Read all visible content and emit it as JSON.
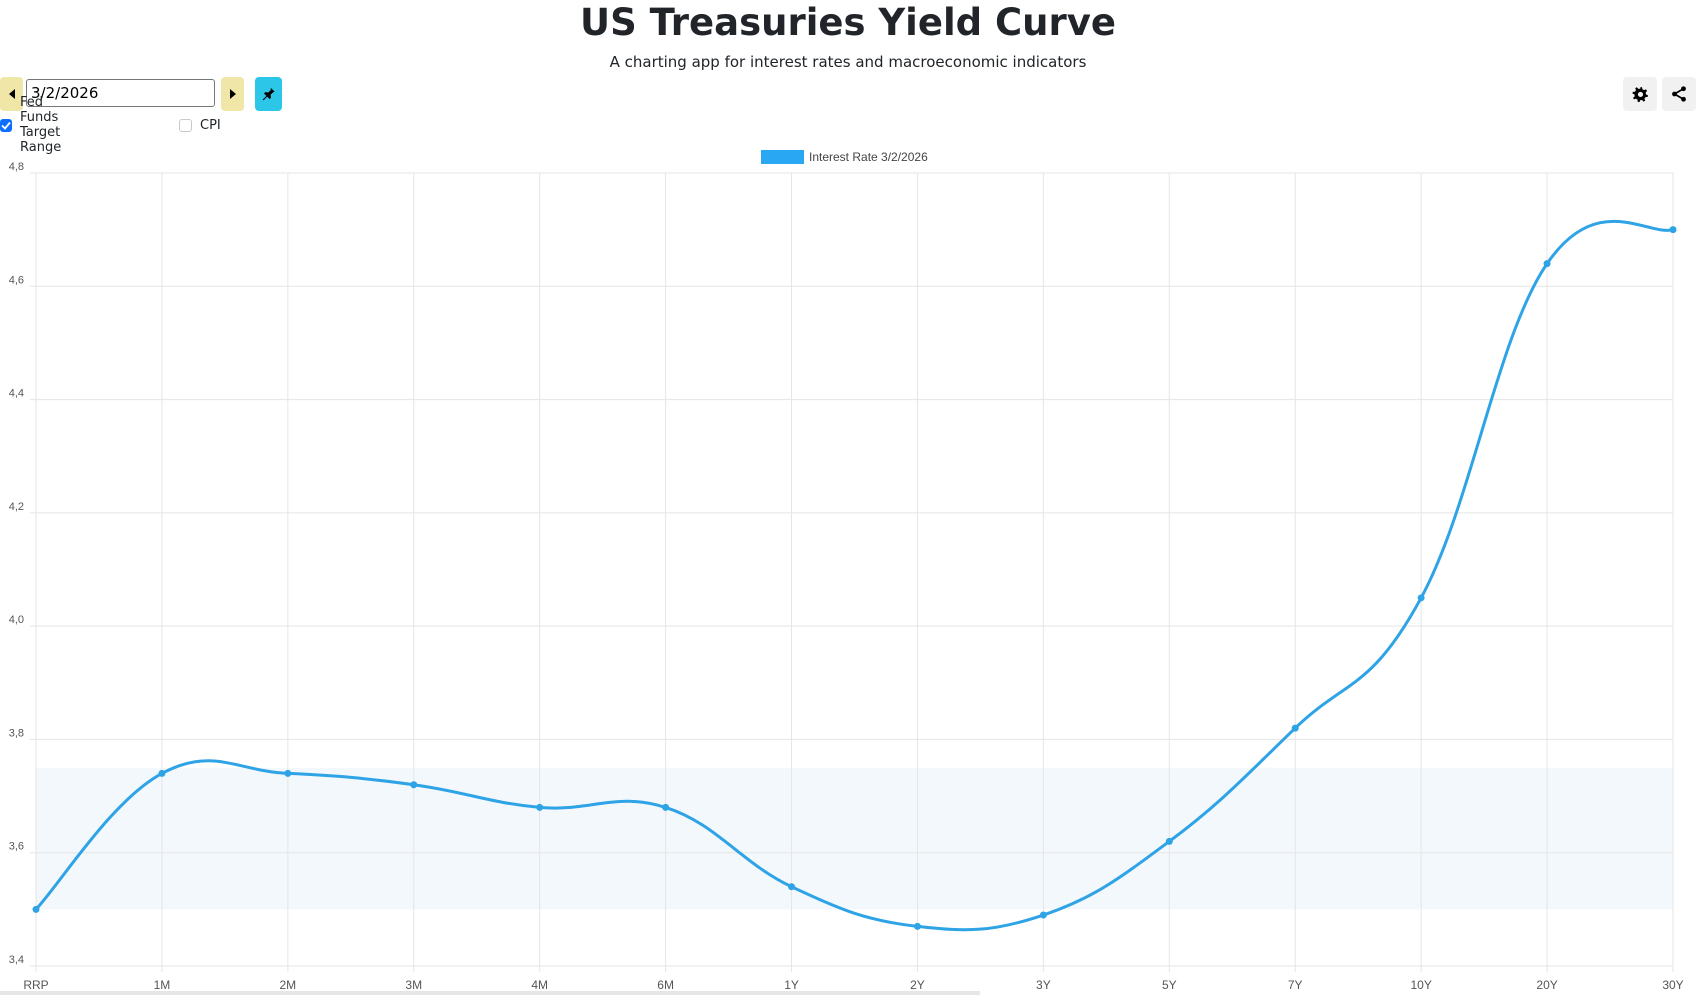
{
  "header": {
    "title": "US Treasuries Yield Curve",
    "subtitle": "A charting app for interest rates and macroeconomic indicators"
  },
  "toolbar": {
    "date_value": "3/2/2026",
    "prev_icon": "caret-left-icon",
    "next_icon": "caret-right-icon",
    "pin_icon": "pin-icon",
    "settings_icon": "gear-icon",
    "share_icon": "share-icon"
  },
  "options": {
    "fed_funds": {
      "label": "Fed Funds Target Range",
      "checked": true
    },
    "cpi": {
      "label": "CPI",
      "checked": false
    }
  },
  "colors": {
    "line": "#2ea3e6",
    "legend_swatch": "#2aa7f2",
    "band": "#f3f8fd",
    "pin_button": "#2bc6e8",
    "nav_button": "#f0e6a8",
    "checkbox": "#0d6efd"
  },
  "chart_data": {
    "type": "line",
    "title": "",
    "xlabel": "",
    "ylabel": "",
    "categories": [
      "RRP",
      "1M",
      "2M",
      "3M",
      "4M",
      "6M",
      "1Y",
      "2Y",
      "3Y",
      "5Y",
      "7Y",
      "10Y",
      "20Y",
      "30Y"
    ],
    "series": [
      {
        "name": "Interest Rate 3/2/2026",
        "values": [
          3.5,
          3.74,
          3.74,
          3.72,
          3.68,
          3.68,
          3.54,
          3.47,
          3.49,
          3.62,
          3.82,
          4.05,
          4.64,
          4.7
        ]
      }
    ],
    "band": {
      "label": "Fed Funds Target Range",
      "low": 3.5,
      "high": 3.75
    },
    "ylim": [
      3.4,
      4.8
    ],
    "yticks": [
      "3,4",
      "3,6",
      "3,8",
      "4,0",
      "4,2",
      "4,4",
      "4,6",
      "4,8"
    ],
    "grid": true,
    "legend_position": "top-center"
  }
}
